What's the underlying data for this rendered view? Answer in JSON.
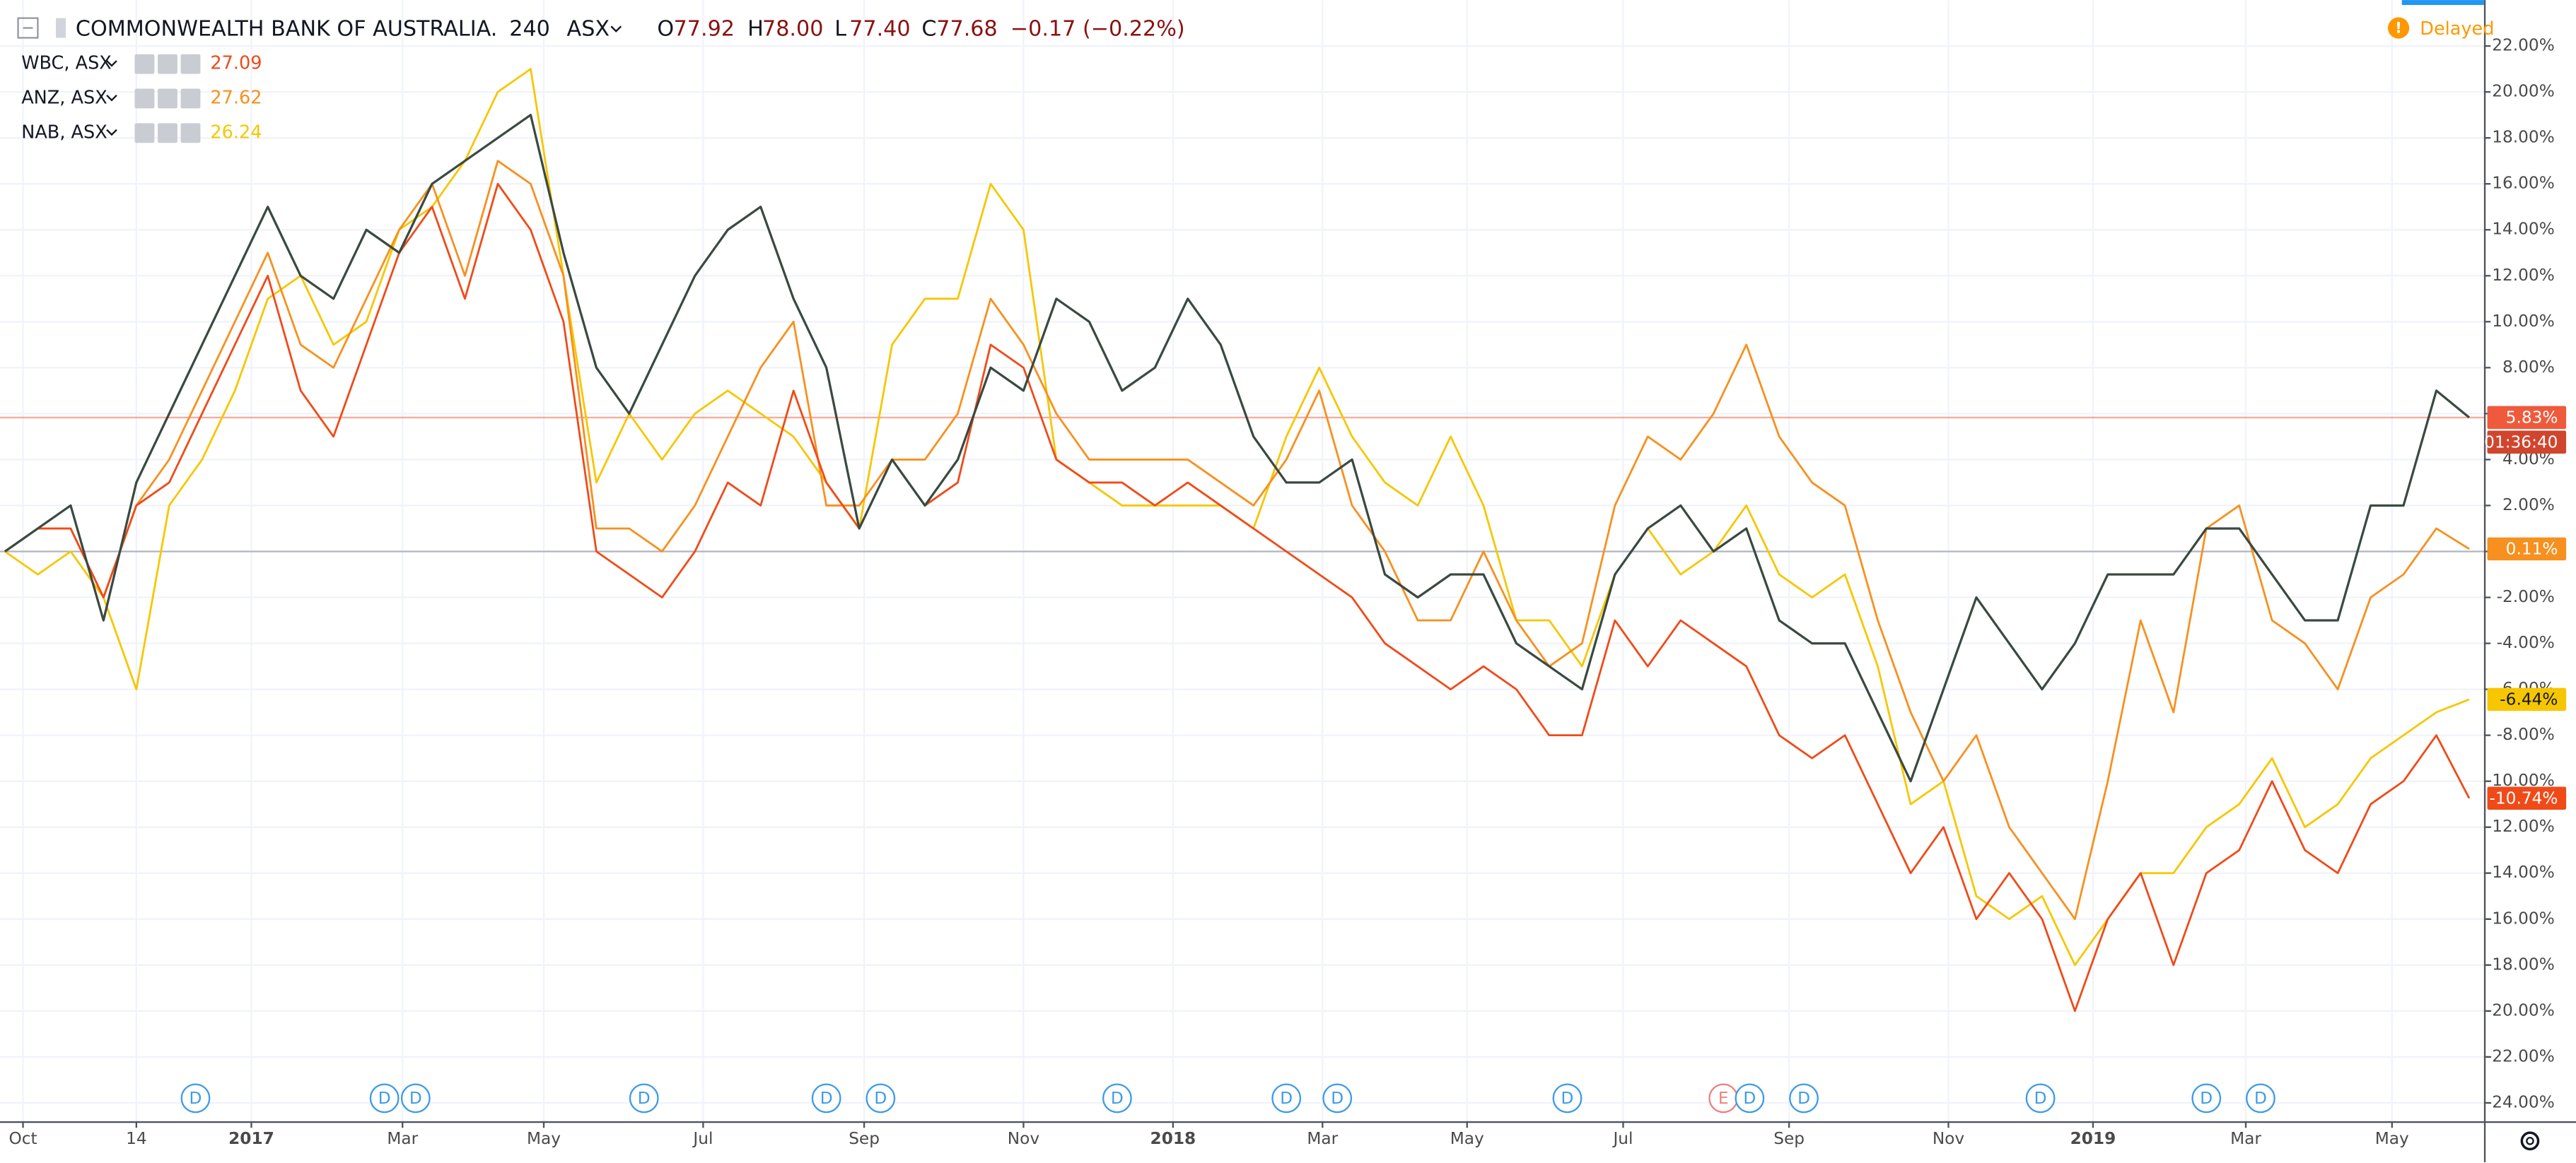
{
  "chart_data": {
    "type": "line",
    "title": "COMMONWEALTH BANK OF AUSTRALIA.",
    "interval": "240",
    "exchange": "ASX",
    "ohlc": [
      {
        "label": "O",
        "value": "77.92"
      },
      {
        "label": "H",
        "value": "78.00"
      },
      {
        "label": "L",
        "value": "77.40"
      },
      {
        "label": "C",
        "value": "77.68"
      }
    ],
    "change": "−0.17 (−0.22%)",
    "status": "Delayed",
    "countdown": "01:36:40",
    "grid": true,
    "xlim": [
      -0.15,
      75.45
    ],
    "ylim": [
      -24.8,
      24
    ],
    "xticks": [
      {
        "value": 0.55,
        "label": "Oct"
      },
      {
        "value": 4,
        "label": "14"
      },
      {
        "value": 7.5,
        "label": "2017"
      },
      {
        "value": 12.1,
        "label": "Mar"
      },
      {
        "value": 16.4,
        "label": "May"
      },
      {
        "value": 21.25,
        "label": "Jul"
      },
      {
        "value": 26.15,
        "label": "Sep"
      },
      {
        "value": 31,
        "label": "Nov"
      },
      {
        "value": 35.55,
        "label": "2018"
      },
      {
        "value": 40.1,
        "label": "Mar"
      },
      {
        "value": 44.5,
        "label": "May"
      },
      {
        "value": 49.25,
        "label": "Jul"
      },
      {
        "value": 54.3,
        "label": "Sep"
      },
      {
        "value": 59.15,
        "label": "Nov"
      },
      {
        "value": 63.55,
        "label": "2019"
      },
      {
        "value": 68.2,
        "label": "Mar"
      },
      {
        "value": 72.65,
        "label": "May"
      }
    ],
    "yticks": [
      {
        "value": 22,
        "label": "22.00%"
      },
      {
        "value": 20,
        "label": "20.00%"
      },
      {
        "value": 18,
        "label": "18.00%"
      },
      {
        "value": 16,
        "label": "16.00%"
      },
      {
        "value": 14,
        "label": "14.00%"
      },
      {
        "value": 12,
        "label": "12.00%"
      },
      {
        "value": 10,
        "label": "10.00%"
      },
      {
        "value": 8,
        "label": "8.00%"
      },
      {
        "value": 6,
        "label": "6.00%"
      },
      {
        "value": 4,
        "label": "4.00%"
      },
      {
        "value": 2,
        "label": "2.00%"
      },
      {
        "value": 0,
        "label": "0.00%"
      },
      {
        "value": -2,
        "label": "-2.00%"
      },
      {
        "value": -4,
        "label": "-4.00%"
      },
      {
        "value": -6,
        "label": "-6.00%"
      },
      {
        "value": -8,
        "label": "-8.00%"
      },
      {
        "value": -10,
        "label": "-10.00%"
      },
      {
        "value": -12,
        "label": "-12.00%"
      },
      {
        "value": -14,
        "label": "-14.00%"
      },
      {
        "value": -16,
        "label": "-16.00%"
      },
      {
        "value": -18,
        "label": "-18.00%"
      },
      {
        "value": -20,
        "label": "-20.00%"
      },
      {
        "value": -22,
        "label": "-22.00%"
      },
      {
        "value": -24,
        "label": "-24.00%"
      }
    ],
    "series": [
      {
        "name": "COMMONWEALTH BANK OF AUSTRALIA.",
        "color": "#3a4a40",
        "label_color": "#ef5a3c",
        "last_value_label": "5.83%",
        "values": [
          0,
          1,
          2,
          -3,
          3,
          6,
          9,
          12,
          15,
          12,
          11,
          14,
          13,
          16,
          17,
          18,
          19,
          13,
          8,
          6,
          9,
          12,
          14,
          15,
          11,
          8,
          1,
          4,
          2,
          4,
          8,
          7,
          11,
          10,
          7,
          8,
          11,
          9,
          5,
          3,
          3,
          4,
          -1,
          -2,
          -1,
          -1,
          -4,
          -5,
          -6,
          -1,
          1,
          2,
          0,
          1,
          -3,
          -4,
          -4,
          -7,
          -10,
          -6,
          -2,
          -4,
          -6,
          -4,
          -1,
          -1,
          -1,
          1,
          1,
          -1,
          -3,
          -3,
          2,
          2,
          7,
          5.83
        ]
      },
      {
        "name": "WBC, ASX",
        "legend_value": "27.09",
        "color": "#f04a18",
        "label_color": "#f04a18",
        "last_value_label": "-10.74%",
        "values": [
          0,
          1,
          1,
          -2,
          2,
          3,
          6,
          9,
          12,
          7,
          5,
          9,
          13,
          15,
          11,
          16,
          14,
          10,
          0,
          -1,
          -2,
          0,
          3,
          2,
          7,
          3,
          1,
          4,
          2,
          3,
          9,
          8,
          4,
          3,
          3,
          2,
          3,
          2,
          1,
          0,
          -1,
          -2,
          -4,
          -5,
          -6,
          -5,
          -6,
          -8,
          -8,
          -3,
          -5,
          -3,
          -4,
          -5,
          -8,
          -9,
          -8,
          -11,
          -14,
          -12,
          -16,
          -14,
          -16,
          -20,
          -16,
          -14,
          -18,
          -14,
          -13,
          -10,
          -13,
          -14,
          -11,
          -10,
          -8,
          -10.74
        ]
      },
      {
        "name": "ANZ, ASX",
        "legend_value": "27.62",
        "color": "#f7901e",
        "label_color": "#f7901e",
        "last_value_label": "0.11%",
        "values": [
          0,
          1,
          1,
          -2,
          2,
          4,
          7,
          10,
          13,
          9,
          8,
          11,
          14,
          16,
          12,
          17,
          16,
          12,
          1,
          1,
          0,
          2,
          5,
          8,
          10,
          2,
          2,
          4,
          4,
          6,
          11,
          9,
          6,
          4,
          4,
          4,
          4,
          3,
          2,
          4,
          7,
          2,
          0,
          -3,
          -3,
          0,
          -3,
          -5,
          -4,
          2,
          5,
          4,
          6,
          9,
          5,
          3,
          2,
          -3,
          -7,
          -10,
          -8,
          -12,
          -14,
          -16,
          -10,
          -3,
          -7,
          1,
          2,
          -3,
          -4,
          -6,
          -2,
          -1,
          1,
          0.11
        ]
      },
      {
        "name": "NAB, ASX",
        "legend_value": "26.24",
        "color": "#f6c700",
        "label_color": "#f6c700",
        "last_value_label": "-6.44%",
        "values": [
          0,
          -1,
          0,
          -2,
          -6,
          2,
          4,
          7,
          11,
          12,
          9,
          10,
          14,
          15,
          17,
          20,
          21,
          12,
          3,
          6,
          4,
          6,
          7,
          6,
          5,
          3,
          1,
          9,
          11,
          11,
          16,
          14,
          4,
          3,
          2,
          2,
          2,
          2,
          1,
          5,
          8,
          5,
          3,
          2,
          5,
          2,
          -3,
          -3,
          -5,
          -1,
          1,
          -1,
          0,
          2,
          -1,
          -2,
          -1,
          -5,
          -11,
          -10,
          -15,
          -16,
          -15,
          -18,
          -16,
          -14,
          -14,
          -12,
          -11,
          -9,
          -12,
          -11,
          -9,
          -8,
          -7,
          -6.44
        ]
      }
    ],
    "events": [
      {
        "x": 5.8,
        "label": "D"
      },
      {
        "x": 11.55,
        "label": "D"
      },
      {
        "x": 12.5,
        "label": "D"
      },
      {
        "x": 19.45,
        "label": "D"
      },
      {
        "x": 25,
        "label": "D"
      },
      {
        "x": 26.65,
        "label": "D"
      },
      {
        "x": 33.85,
        "label": "D"
      },
      {
        "x": 39,
        "label": "D"
      },
      {
        "x": 40.55,
        "label": "D"
      },
      {
        "x": 47.55,
        "label": "D"
      },
      {
        "x": 52.3,
        "label": "E"
      },
      {
        "x": 53.1,
        "label": "D"
      },
      {
        "x": 54.75,
        "label": "D"
      },
      {
        "x": 61.95,
        "label": "D"
      },
      {
        "x": 67,
        "label": "D"
      },
      {
        "x": 68.65,
        "label": "D"
      }
    ]
  }
}
